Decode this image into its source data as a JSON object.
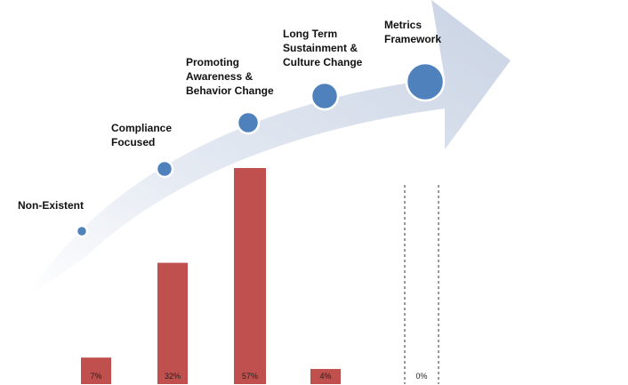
{
  "chart_data": {
    "type": "bar",
    "categories": [
      "Non-Existent",
      "Compliance Focused",
      "Promoting Awareness & Behavior Change",
      "Long Term Sustainment & Culture Change",
      "Metrics Framework"
    ],
    "stage_label_lines": [
      [
        "Non-Existent"
      ],
      [
        "Compliance",
        "Focused"
      ],
      [
        "Promoting",
        "Awareness &",
        "Behavior Change"
      ],
      [
        "Long Term",
        "Sustainment &",
        "Culture Change"
      ],
      [
        "Metrics",
        "Framework"
      ]
    ],
    "values": [
      7,
      32,
      57,
      4,
      0
    ],
    "value_labels": [
      "7%",
      "32%",
      "57%",
      "4%",
      "0%"
    ],
    "unit": "%",
    "colors": {
      "bar": "#C0504D",
      "arrow": "#D5DDEA",
      "marker": "#4F81BD",
      "marker_outline": "#ffffff",
      "empty_bar_outline": "#333333"
    }
  }
}
